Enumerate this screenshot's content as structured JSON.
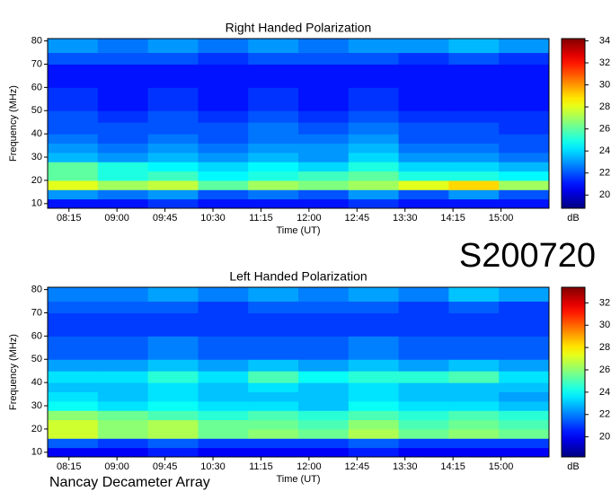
{
  "chart_data": [
    {
      "type": "heatmap",
      "title": "Right Handed Polarization",
      "x_label": "Time (UT)",
      "y_label": "Frequency (MHz)",
      "colorbar_label": "dB",
      "xlim": [
        475,
        945
      ],
      "xticks": [
        {
          "value": 495,
          "label": "08:15"
        },
        {
          "value": 540,
          "label": "09:00"
        },
        {
          "value": 585,
          "label": "09:45"
        },
        {
          "value": 630,
          "label": "10:30"
        },
        {
          "value": 675,
          "label": "11:15"
        },
        {
          "value": 720,
          "label": "12:00"
        },
        {
          "value": 765,
          "label": "12:45"
        },
        {
          "value": 810,
          "label": "13:30"
        },
        {
          "value": 855,
          "label": "14:15"
        },
        {
          "value": 900,
          "label": "15:00"
        }
      ],
      "ylim": [
        8,
        81
      ],
      "yticks": [
        10,
        20,
        30,
        40,
        50,
        60,
        70,
        80
      ],
      "zlim": [
        18.8,
        34.2
      ],
      "zticks": [
        20,
        22,
        24,
        26,
        28,
        30,
        32,
        34
      ],
      "xbins": [
        475,
        522,
        569,
        616,
        663,
        710,
        757,
        804,
        851,
        898,
        945
      ],
      "ybins": [
        8,
        12,
        16,
        20,
        24,
        28,
        32,
        36,
        40,
        45,
        50,
        60,
        70,
        75,
        81
      ],
      "z": [
        [
          21,
          21,
          21.5,
          21,
          21,
          21,
          21.5,
          21,
          21,
          21
        ],
        [
          23,
          22.5,
          23,
          22,
          22.5,
          22,
          23,
          22,
          23,
          22
        ],
        [
          28,
          27,
          27.5,
          26,
          27,
          26.5,
          27,
          28,
          29,
          27
        ],
        [
          26,
          25,
          25.5,
          24.5,
          25,
          25.5,
          26,
          25,
          25,
          24.5
        ],
        [
          26,
          25,
          24.5,
          24,
          24.5,
          24,
          25,
          24,
          24,
          23.5
        ],
        [
          23.5,
          23,
          23.5,
          23,
          23.5,
          23,
          24,
          23,
          23,
          22.5
        ],
        [
          23,
          22.5,
          23,
          22.5,
          23,
          23,
          23.5,
          22.5,
          22.5,
          22
        ],
        [
          22.5,
          22,
          22.5,
          22,
          22.5,
          22.5,
          23,
          22,
          22,
          22
        ],
        [
          22,
          22,
          22,
          22,
          22.5,
          22,
          22.5,
          22,
          22,
          21.5
        ],
        [
          22,
          21.5,
          22,
          21.5,
          22,
          21.5,
          22,
          21.5,
          21.5,
          21.5
        ],
        [
          21.5,
          21,
          21.5,
          21,
          21.5,
          21,
          21.5,
          21,
          21,
          21
        ],
        [
          21,
          21,
          21,
          21,
          21,
          21,
          21,
          21,
          21,
          21
        ],
        [
          22,
          22,
          22,
          21.5,
          22,
          22,
          22,
          21.5,
          22,
          21.5
        ],
        [
          23,
          22.5,
          23,
          22.5,
          23,
          22.5,
          23,
          23,
          23.5,
          23
        ]
      ]
    },
    {
      "type": "heatmap",
      "title": "Left Handed Polarization",
      "x_label": "Time (UT)",
      "y_label": "Frequency (MHz)",
      "colorbar_label": "dB",
      "xlim": [
        475,
        945
      ],
      "xticks": [
        {
          "value": 495,
          "label": "08:15"
        },
        {
          "value": 540,
          "label": "09:00"
        },
        {
          "value": 585,
          "label": "09:45"
        },
        {
          "value": 630,
          "label": "10:30"
        },
        {
          "value": 675,
          "label": "11:15"
        },
        {
          "value": 720,
          "label": "12:00"
        },
        {
          "value": 765,
          "label": "12:45"
        },
        {
          "value": 810,
          "label": "13:30"
        },
        {
          "value": 855,
          "label": "14:15"
        },
        {
          "value": 900,
          "label": "15:00"
        }
      ],
      "ylim": [
        8,
        81
      ],
      "yticks": [
        10,
        20,
        30,
        40,
        50,
        60,
        70,
        80
      ],
      "zlim": [
        18.2,
        33.4
      ],
      "zticks": [
        20,
        22,
        24,
        26,
        28,
        30,
        32
      ],
      "xbins": [
        475,
        522,
        569,
        616,
        663,
        710,
        757,
        804,
        851,
        898,
        945
      ],
      "ybins": [
        8,
        12,
        16,
        20,
        24,
        28,
        32,
        36,
        40,
        45,
        50,
        60,
        70,
        75,
        81
      ],
      "z": [
        [
          20,
          20,
          20.5,
          20,
          20,
          20,
          20.5,
          20,
          20,
          20
        ],
        [
          21.5,
          21,
          21.5,
          21,
          21,
          21,
          21.5,
          21,
          21,
          21
        ],
        [
          27,
          26,
          26.5,
          25.5,
          26,
          25.5,
          26.5,
          25.5,
          26,
          25.5
        ],
        [
          27,
          26,
          26.5,
          25.5,
          25.5,
          25,
          26,
          25,
          25.5,
          25
        ],
        [
          26,
          25.5,
          25,
          24.5,
          25,
          24.5,
          25,
          24.5,
          25,
          24.5
        ],
        [
          24,
          23.5,
          24,
          23.5,
          23.5,
          23,
          24,
          23.5,
          23.5,
          23
        ],
        [
          23.5,
          23,
          23.5,
          23,
          23,
          23,
          23.5,
          23,
          23,
          22.5
        ],
        [
          23,
          23,
          23.5,
          23,
          23.5,
          23,
          23.5,
          23,
          23,
          23
        ],
        [
          23.5,
          23.5,
          24.5,
          23.5,
          25,
          24,
          24.5,
          24.5,
          25,
          23.5
        ],
        [
          22.5,
          22.5,
          23,
          22.5,
          23,
          22.5,
          23,
          22.5,
          23,
          22.5
        ],
        [
          21.5,
          21.5,
          22,
          21.5,
          21.5,
          21.5,
          22,
          21.5,
          21.5,
          21.5
        ],
        [
          21,
          21,
          21,
          21,
          21,
          21,
          21,
          21,
          21,
          21
        ],
        [
          21.5,
          21.5,
          21.5,
          21,
          21.5,
          21.5,
          21.5,
          21,
          21.5,
          21
        ],
        [
          22,
          22,
          22.5,
          22,
          22.5,
          22,
          22.5,
          22,
          23,
          22.5
        ]
      ]
    }
  ],
  "event_label": "S200720",
  "footer": "Nancay Decameter Array"
}
